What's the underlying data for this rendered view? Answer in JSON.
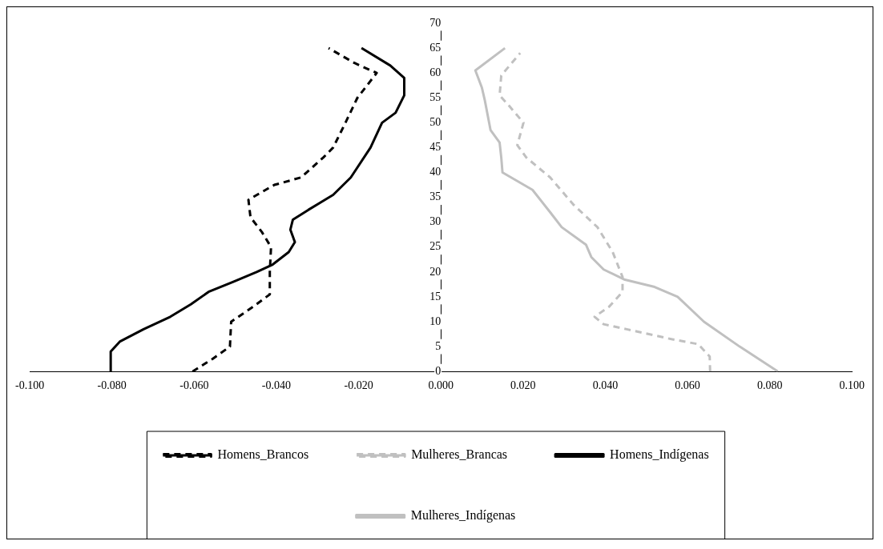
{
  "chart_data": {
    "type": "line",
    "legend": "bottom",
    "grid": false,
    "marker": "none",
    "xlim": [
      -0.1,
      0.1
    ],
    "xticks": [
      {
        "value": -0.1,
        "label": "-0.100"
      },
      {
        "value": -0.08,
        "label": "-0.080"
      },
      {
        "value": -0.06,
        "label": "-0.060"
      },
      {
        "value": -0.04,
        "label": "-0.040"
      },
      {
        "value": -0.02,
        "label": "-0.020"
      },
      {
        "value": 0,
        "label": "0.000"
      },
      {
        "value": 0.02,
        "label": "0.020"
      },
      {
        "value": 0.04,
        "label": "0.040"
      },
      {
        "value": 0.06,
        "label": "0.060"
      },
      {
        "value": 0.08,
        "label": "0.080"
      },
      {
        "value": 0.1,
        "label": "0.100"
      }
    ],
    "ylim": [
      0,
      70
    ],
    "yticks": [
      0,
      5,
      10,
      15,
      20,
      25,
      30,
      35,
      40,
      45,
      50,
      55,
      60,
      65,
      70
    ],
    "series": [
      {
        "name": "Homens_Brancos",
        "color": "#000000",
        "line_style": "dashed",
        "x": [
          -0.0604,
          -0.0556,
          -0.0513,
          -0.051,
          -0.0457,
          -0.0416,
          -0.0416,
          -0.0413,
          -0.0435,
          -0.0463,
          -0.0468,
          -0.0405,
          -0.034,
          -0.0286,
          -0.0262,
          -0.0232,
          -0.0203,
          -0.0156,
          -0.021,
          -0.0273
        ],
        "values": [
          0,
          2.5,
          5,
          10,
          13,
          15.5,
          20,
          25,
          28,
          31,
          34.5,
          37.5,
          39,
          43,
          45,
          50,
          55,
          60,
          62,
          65
        ]
      },
      {
        "name": "Mulheres_Brancas",
        "color": "#c0c0c0",
        "line_style": "dashed",
        "x": [
          0.0655,
          0.0654,
          0.0626,
          0.0561,
          0.0452,
          0.0396,
          0.0374,
          0.0409,
          0.0442,
          0.0442,
          0.0418,
          0.0381,
          0.0323,
          0.0266,
          0.0208,
          0.0186,
          0.0201,
          0.0165,
          0.0143,
          0.0147,
          0.0193
        ],
        "values": [
          0,
          3,
          5.5,
          6.5,
          8.5,
          9.5,
          11,
          13,
          16,
          19,
          24,
          29,
          33.5,
          39,
          43,
          45.5,
          50,
          53.5,
          55.5,
          59.5,
          64
        ]
      },
      {
        "name": "Homens_Indígenas",
        "color": "#000000",
        "line_style": "solid",
        "x": [
          -0.0803,
          -0.0803,
          -0.0781,
          -0.0723,
          -0.0658,
          -0.0608,
          -0.0565,
          -0.0506,
          -0.0448,
          -0.0409,
          -0.037,
          -0.0355,
          -0.0366,
          -0.036,
          -0.0322,
          -0.0262,
          -0.0219,
          -0.0171,
          -0.0143,
          -0.011,
          -0.0089,
          -0.0089,
          -0.0123,
          -0.0193
        ],
        "values": [
          0,
          4,
          6,
          8.5,
          11,
          13.5,
          16,
          18,
          20,
          21.5,
          24,
          26,
          28.5,
          30.5,
          32.5,
          35.5,
          39,
          45,
          50,
          52,
          55.5,
          59,
          61.5,
          65
        ]
      },
      {
        "name": "Mulheres_Indígenas",
        "color": "#c0c0c0",
        "line_style": "solid",
        "x": [
          0.082,
          0.0727,
          0.064,
          0.0576,
          0.052,
          0.0446,
          0.0396,
          0.0366,
          0.0353,
          0.0294,
          0.0266,
          0.0223,
          0.015,
          0.0147,
          0.0143,
          0.0121,
          0.0107,
          0.01,
          0.0084,
          0.0156
        ],
        "values": [
          0,
          5,
          10,
          15,
          17,
          18.5,
          20.5,
          23,
          25.5,
          29,
          32,
          36.5,
          40,
          43,
          46,
          48.5,
          54.5,
          57,
          60.5,
          65
        ]
      }
    ]
  }
}
